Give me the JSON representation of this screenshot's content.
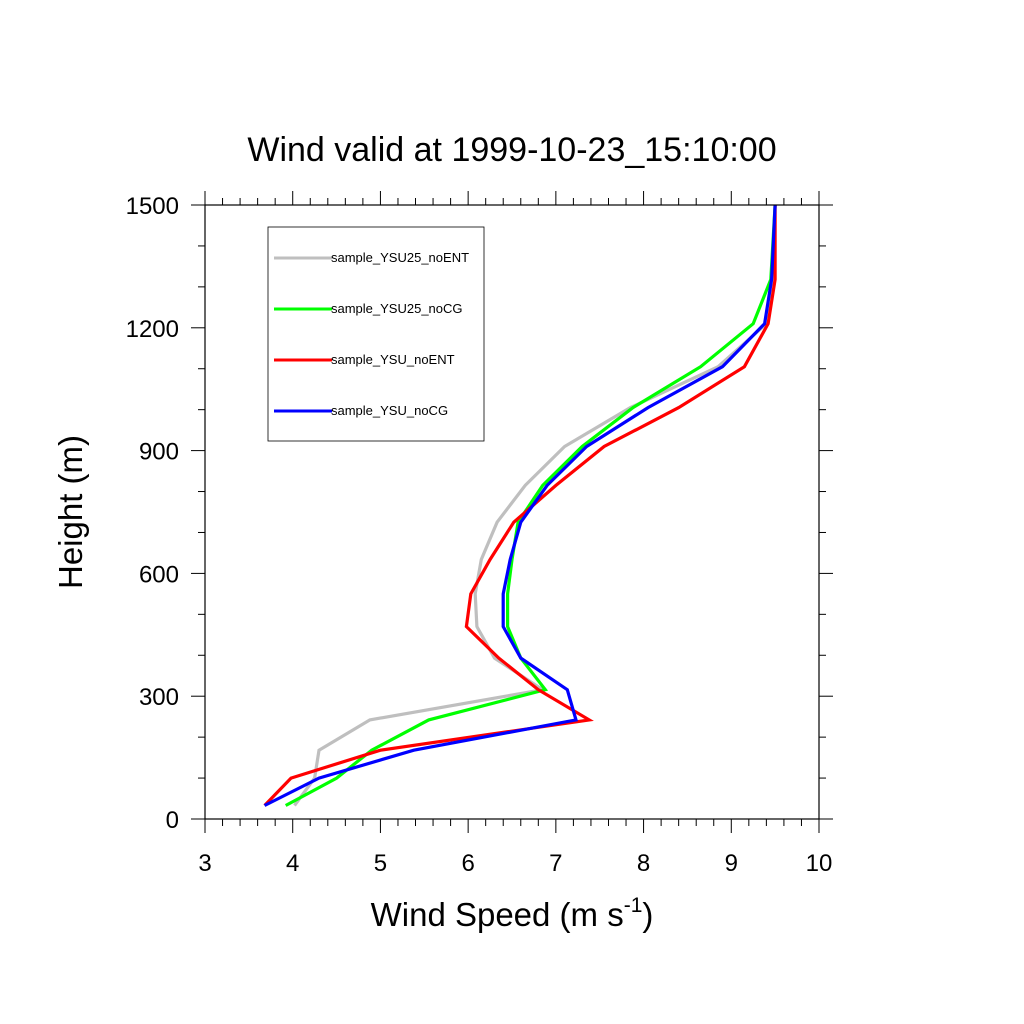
{
  "chart_data": {
    "type": "line",
    "title": "Wind valid at 1999-10-23_15:10:00",
    "xlabel": "Wind Speed (m s",
    "xlabel_sup": "-1",
    "xlabel_end": ")",
    "ylabel": "Height (m)",
    "xlim": [
      3,
      10
    ],
    "ylim": [
      0,
      1500
    ],
    "x_ticks": [
      3,
      4,
      5,
      6,
      7,
      8,
      9,
      10
    ],
    "y_ticks": [
      0,
      300,
      600,
      900,
      1200,
      1500
    ],
    "grid": false,
    "legend_position": "top-left",
    "series": [
      {
        "name": "sample_YSU25_noENT",
        "color": "#bfbfbf",
        "points": [
          [
            4.02,
            33
          ],
          [
            4.25,
            100
          ],
          [
            4.3,
            168
          ],
          [
            4.88,
            242
          ],
          [
            6.85,
            316
          ],
          [
            6.3,
            393
          ],
          [
            6.1,
            470
          ],
          [
            6.08,
            550
          ],
          [
            6.15,
            634
          ],
          [
            6.33,
            725
          ],
          [
            6.65,
            815
          ],
          [
            7.1,
            910
          ],
          [
            7.85,
            1005
          ],
          [
            8.85,
            1105
          ],
          [
            9.4,
            1210
          ],
          [
            9.47,
            1318
          ],
          [
            9.5,
            1500
          ]
        ]
      },
      {
        "name": "sample_YSU25_noCG",
        "color": "#00ff00",
        "points": [
          [
            3.92,
            33
          ],
          [
            4.5,
            100
          ],
          [
            4.9,
            168
          ],
          [
            5.55,
            242
          ],
          [
            6.88,
            316
          ],
          [
            6.6,
            393
          ],
          [
            6.45,
            470
          ],
          [
            6.45,
            550
          ],
          [
            6.5,
            634
          ],
          [
            6.57,
            725
          ],
          [
            6.85,
            815
          ],
          [
            7.3,
            910
          ],
          [
            7.88,
            1005
          ],
          [
            8.65,
            1105
          ],
          [
            9.25,
            1210
          ],
          [
            9.45,
            1318
          ],
          [
            9.5,
            1500
          ]
        ]
      },
      {
        "name": "sample_YSU_noENT",
        "color": "#ff0000",
        "points": [
          [
            3.68,
            33
          ],
          [
            3.98,
            100
          ],
          [
            5.0,
            168
          ],
          [
            7.38,
            242
          ],
          [
            6.8,
            316
          ],
          [
            6.35,
            393
          ],
          [
            5.98,
            470
          ],
          [
            6.03,
            550
          ],
          [
            6.25,
            634
          ],
          [
            6.52,
            725
          ],
          [
            7.0,
            815
          ],
          [
            7.55,
            910
          ],
          [
            8.4,
            1005
          ],
          [
            9.15,
            1105
          ],
          [
            9.42,
            1210
          ],
          [
            9.5,
            1318
          ],
          [
            9.5,
            1500
          ]
        ]
      },
      {
        "name": "sample_YSU_noCG",
        "color": "#0000ff",
        "points": [
          [
            3.68,
            33
          ],
          [
            4.3,
            100
          ],
          [
            5.38,
            168
          ],
          [
            7.23,
            242
          ],
          [
            7.13,
            316
          ],
          [
            6.6,
            393
          ],
          [
            6.4,
            470
          ],
          [
            6.4,
            550
          ],
          [
            6.48,
            634
          ],
          [
            6.6,
            725
          ],
          [
            6.9,
            815
          ],
          [
            7.35,
            910
          ],
          [
            8.05,
            1005
          ],
          [
            8.9,
            1105
          ],
          [
            9.38,
            1210
          ],
          [
            9.46,
            1318
          ],
          [
            9.5,
            1500
          ]
        ]
      }
    ]
  }
}
